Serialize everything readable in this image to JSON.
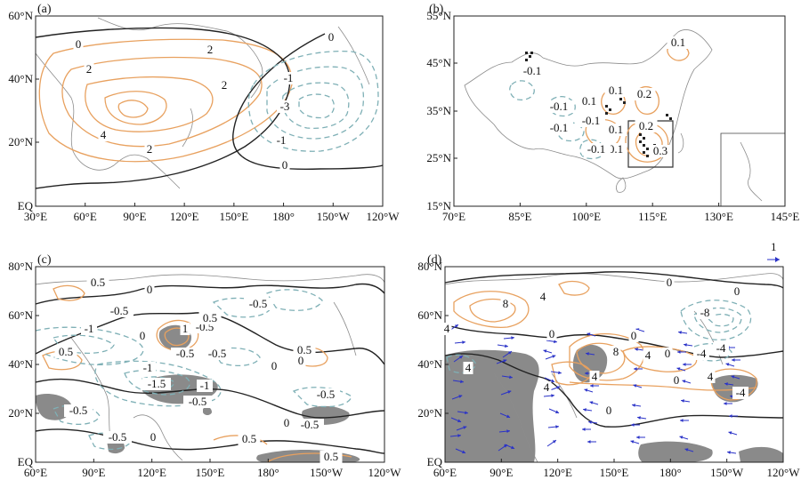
{
  "chart_data": [
    {
      "type": "contour",
      "panel": "(a)",
      "x_ticks": [
        "30°E",
        "60°E",
        "90°E",
        "120°E",
        "150°E",
        "180°",
        "150°W",
        "120°W"
      ],
      "y_ticks": [
        "60°N",
        "40°N",
        "20°N",
        "EQ"
      ],
      "contour_labels": [
        "0",
        "2",
        "2",
        "2",
        "4",
        "2",
        "0",
        "-1",
        "-3",
        "-1",
        "0"
      ]
    },
    {
      "type": "contour",
      "panel": "(b)",
      "x_ticks": [
        "70°E",
        "85°E",
        "100°E",
        "115°E",
        "130°E",
        "145°E"
      ],
      "y_ticks": [
        "55°N",
        "45°N",
        "35°N",
        "25°N",
        "15°N"
      ],
      "contour_labels": [
        "0.1",
        "-0.1",
        "0.1",
        "0.1",
        "0.2",
        "-0.1",
        "-0.1",
        "0.1",
        "0.2",
        "-0.1",
        "0.1",
        "0.3",
        "-0.1"
      ]
    },
    {
      "type": "contour",
      "panel": "(c)",
      "x_ticks": [
        "60°E",
        "90°E",
        "120°E",
        "150°E",
        "180°",
        "150°W",
        "120°W"
      ],
      "y_ticks": [
        "80°N",
        "60°N",
        "40°N",
        "20°N",
        "EQ"
      ],
      "contour_labels": [
        "0.5",
        "0",
        "-0.5",
        "-0.5",
        "-1",
        "0",
        "0.5",
        "-0.5",
        "1",
        "0.5",
        "-0.5",
        "-0.5",
        "-1",
        "0",
        "0.5",
        "-1.5",
        "-1",
        "-0.5",
        "-0.5",
        "-0.5",
        "0",
        "-0.5",
        "-0.5",
        "0",
        "0.5",
        "0.5",
        "0"
      ]
    },
    {
      "type": "contour",
      "panel": "(d)",
      "x_ticks": [
        "60°E",
        "90°E",
        "120°E",
        "150°E",
        "180°",
        "150°W",
        "120°W"
      ],
      "y_ticks": [
        "80°N",
        "60°N",
        "40°N",
        "20°N",
        "EQ"
      ],
      "contour_labels": [
        "0",
        "4",
        "8",
        "4",
        "0",
        "-8",
        "0",
        "4",
        "0",
        "8",
        "4",
        "0",
        "-4",
        "4",
        "-4",
        "4",
        "0",
        "0",
        "4",
        "-4"
      ],
      "reference_vector": "1"
    }
  ]
}
